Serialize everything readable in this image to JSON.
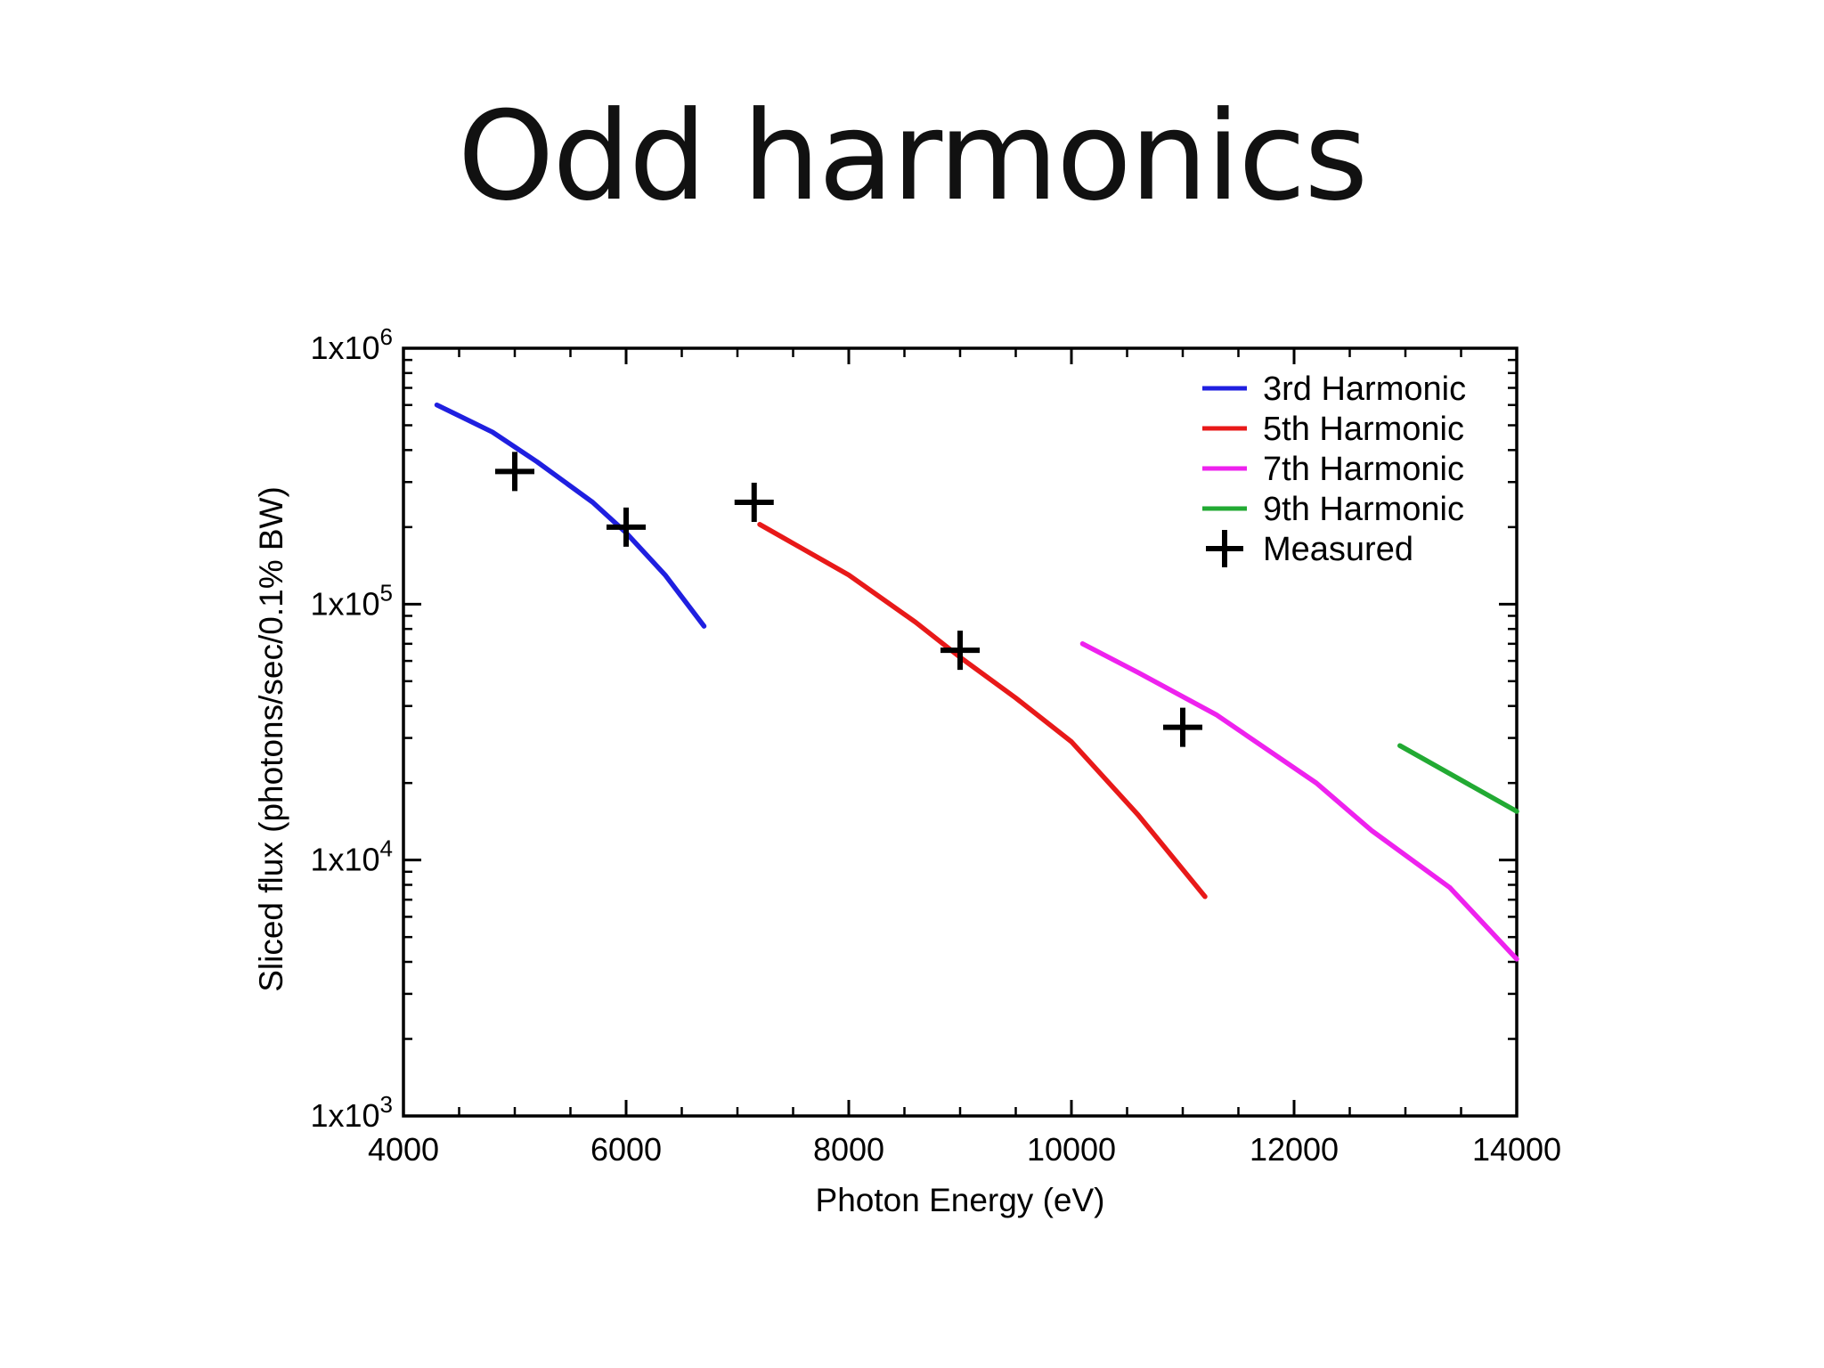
{
  "slide": {
    "title": "Odd harmonics"
  },
  "chart_data": {
    "type": "line",
    "xlabel": "Photon Energy (eV)",
    "ylabel": "Sliced flux (photons/sec/0.1% BW)",
    "xlim": [
      4000,
      14000
    ],
    "ylim": [
      1000,
      1000000
    ],
    "yscale": "log",
    "x_ticks": [
      4000,
      6000,
      8000,
      10000,
      12000,
      14000
    ],
    "x_tick_labels": [
      "4000",
      "6000",
      "8000",
      "10000",
      "12000",
      "14000"
    ],
    "y_ticks": [
      {
        "value": 1000,
        "base": "1x10",
        "exp": "3"
      },
      {
        "value": 10000,
        "base": "1x10",
        "exp": "4"
      },
      {
        "value": 100000,
        "base": "1x10",
        "exp": "5"
      },
      {
        "value": 1000000,
        "base": "1x10",
        "exp": "6"
      }
    ],
    "grid": false,
    "legend_position": "top-right",
    "series": [
      {
        "name": "3rd Harmonic",
        "color": "#1f1fe0",
        "kind": "line",
        "x": [
          4300,
          4800,
          5200,
          5700,
          6000,
          6350,
          6700
        ],
        "y": [
          600000,
          470000,
          360000,
          250000,
          190000,
          130000,
          82000
        ]
      },
      {
        "name": "5th Harmonic",
        "color": "#e81919",
        "kind": "line",
        "x": [
          7200,
          8000,
          8600,
          9000,
          9500,
          10000,
          10600,
          11200
        ],
        "y": [
          205000,
          130000,
          85000,
          62000,
          43000,
          29000,
          15000,
          7200
        ]
      },
      {
        "name": "7th Harmonic",
        "color": "#ee22ee",
        "kind": "line",
        "x": [
          10100,
          10600,
          11300,
          12200,
          12700,
          13400,
          14000
        ],
        "y": [
          70000,
          54000,
          37000,
          20000,
          13000,
          7800,
          4100
        ]
      },
      {
        "name": "9th Harmonic",
        "color": "#22aa33",
        "kind": "line",
        "x": [
          12950,
          14000
        ],
        "y": [
          28000,
          15500
        ]
      },
      {
        "name": "Measured",
        "color": "#000000",
        "kind": "marker",
        "x": [
          5000,
          6000,
          7150,
          9000,
          11000
        ],
        "y": [
          330000,
          200000,
          250000,
          66000,
          33000
        ]
      }
    ]
  }
}
